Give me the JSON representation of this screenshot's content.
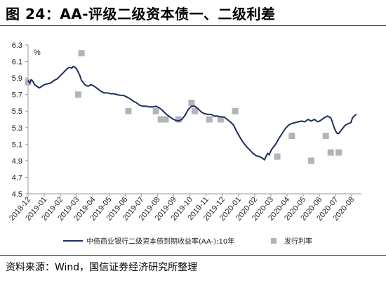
{
  "figure": {
    "title": "图 24：AA-评级二级资本债一、二级利差",
    "source": "资料来源：Wind，国信证券经济研究所整理"
  },
  "chart_data": {
    "type": "line",
    "unit_label": "%",
    "ylim": [
      4.5,
      6.3
    ],
    "yticks": [
      "6.3",
      "6.1",
      "5.9",
      "5.7",
      "5.5",
      "5.3",
      "5.1",
      "4.9",
      "4.7",
      "4.5"
    ],
    "x_ticks": [
      "2018-12",
      "2019-01",
      "2019-02",
      "2019-03",
      "2019-04",
      "2019-05",
      "2019-06",
      "2019-07",
      "2019-08",
      "2019-09",
      "2019-10",
      "2019-11",
      "2019-12",
      "2020-01",
      "2020-02",
      "2020-03",
      "2020-04",
      "2020-05",
      "2020-06",
      "2020-07",
      "2020-08"
    ],
    "x_range": [
      0,
      20.6
    ],
    "series": [
      {
        "name": "中债商业银行二级资本债到期收益率(AA-):10年",
        "kind": "line",
        "color": "#1c2f5c",
        "points": [
          [
            0.0,
            5.87
          ],
          [
            0.1,
            5.84
          ],
          [
            0.2,
            5.88
          ],
          [
            0.3,
            5.86
          ],
          [
            0.4,
            5.82
          ],
          [
            0.55,
            5.8
          ],
          [
            0.7,
            5.78
          ],
          [
            0.85,
            5.8
          ],
          [
            1.0,
            5.82
          ],
          [
            1.2,
            5.83
          ],
          [
            1.4,
            5.84
          ],
          [
            1.6,
            5.87
          ],
          [
            1.8,
            5.89
          ],
          [
            2.0,
            5.93
          ],
          [
            2.2,
            5.97
          ],
          [
            2.4,
            6.01
          ],
          [
            2.55,
            6.03
          ],
          [
            2.7,
            6.02
          ],
          [
            2.8,
            6.04
          ],
          [
            2.9,
            6.03
          ],
          [
            3.0,
            6.01
          ],
          [
            3.1,
            5.97
          ],
          [
            3.2,
            5.93
          ],
          [
            3.3,
            5.87
          ],
          [
            3.4,
            5.85
          ],
          [
            3.5,
            5.82
          ],
          [
            3.7,
            5.8
          ],
          [
            3.9,
            5.82
          ],
          [
            4.1,
            5.8
          ],
          [
            4.3,
            5.77
          ],
          [
            4.5,
            5.74
          ],
          [
            4.7,
            5.72
          ],
          [
            4.9,
            5.72
          ],
          [
            5.1,
            5.71
          ],
          [
            5.3,
            5.71
          ],
          [
            5.5,
            5.7
          ],
          [
            5.7,
            5.69
          ],
          [
            5.9,
            5.69
          ],
          [
            6.1,
            5.67
          ],
          [
            6.3,
            5.65
          ],
          [
            6.5,
            5.62
          ],
          [
            6.7,
            5.6
          ],
          [
            6.9,
            5.57
          ],
          [
            7.1,
            5.56
          ],
          [
            7.3,
            5.56
          ],
          [
            7.5,
            5.55
          ],
          [
            7.7,
            5.55
          ],
          [
            7.9,
            5.56
          ],
          [
            8.1,
            5.54
          ],
          [
            8.3,
            5.51
          ],
          [
            8.5,
            5.47
          ],
          [
            8.7,
            5.44
          ],
          [
            8.9,
            5.41
          ],
          [
            9.1,
            5.39
          ],
          [
            9.3,
            5.38
          ],
          [
            9.5,
            5.4
          ],
          [
            9.7,
            5.45
          ],
          [
            9.9,
            5.52
          ],
          [
            10.1,
            5.56
          ],
          [
            10.3,
            5.56
          ],
          [
            10.5,
            5.53
          ],
          [
            10.7,
            5.49
          ],
          [
            10.9,
            5.47
          ],
          [
            11.1,
            5.46
          ],
          [
            11.3,
            5.46
          ],
          [
            11.5,
            5.44
          ],
          [
            11.7,
            5.44
          ],
          [
            11.9,
            5.43
          ],
          [
            12.1,
            5.43
          ],
          [
            12.3,
            5.4
          ],
          [
            12.5,
            5.37
          ],
          [
            12.7,
            5.33
          ],
          [
            12.9,
            5.25
          ],
          [
            13.1,
            5.18
          ],
          [
            13.3,
            5.12
          ],
          [
            13.5,
            5.07
          ],
          [
            13.7,
            5.03
          ],
          [
            13.9,
            4.99
          ],
          [
            14.1,
            4.96
          ],
          [
            14.3,
            4.95
          ],
          [
            14.5,
            4.93
          ],
          [
            14.6,
            4.91
          ],
          [
            14.7,
            4.95
          ],
          [
            14.8,
            4.99
          ],
          [
            14.9,
            4.97
          ],
          [
            15.0,
            5.02
          ],
          [
            15.1,
            5.05
          ],
          [
            15.3,
            5.1
          ],
          [
            15.5,
            5.17
          ],
          [
            15.7,
            5.23
          ],
          [
            15.9,
            5.29
          ],
          [
            16.1,
            5.33
          ],
          [
            16.3,
            5.35
          ],
          [
            16.5,
            5.36
          ],
          [
            16.7,
            5.37
          ],
          [
            16.9,
            5.38
          ],
          [
            17.1,
            5.37
          ],
          [
            17.3,
            5.4
          ],
          [
            17.5,
            5.38
          ],
          [
            17.7,
            5.4
          ],
          [
            17.9,
            5.37
          ],
          [
            18.1,
            5.39
          ],
          [
            18.3,
            5.42
          ],
          [
            18.5,
            5.44
          ],
          [
            18.7,
            5.42
          ],
          [
            18.8,
            5.37
          ],
          [
            18.9,
            5.31
          ],
          [
            19.0,
            5.26
          ],
          [
            19.1,
            5.23
          ],
          [
            19.2,
            5.23
          ],
          [
            19.4,
            5.28
          ],
          [
            19.6,
            5.33
          ],
          [
            19.8,
            5.35
          ],
          [
            19.95,
            5.36
          ],
          [
            20.05,
            5.42
          ],
          [
            20.2,
            5.45
          ],
          [
            20.3,
            5.46
          ]
        ]
      },
      {
        "name": "发行利率",
        "kind": "scatter",
        "color": "#b4b4b8",
        "points": [
          [
            0.0,
            5.85
          ],
          [
            3.1,
            5.7
          ],
          [
            3.3,
            6.2
          ],
          [
            6.2,
            5.5
          ],
          [
            7.9,
            5.5
          ],
          [
            8.2,
            5.4
          ],
          [
            8.5,
            5.4
          ],
          [
            9.3,
            5.4
          ],
          [
            10.1,
            5.6
          ],
          [
            10.3,
            5.5
          ],
          [
            11.2,
            5.4
          ],
          [
            11.9,
            5.4
          ],
          [
            12.8,
            5.5
          ],
          [
            15.4,
            4.95
          ],
          [
            16.3,
            5.2
          ],
          [
            17.5,
            4.9
          ],
          [
            18.4,
            5.2
          ],
          [
            18.7,
            5.0
          ],
          [
            19.2,
            5.0
          ]
        ]
      }
    ],
    "legend_position": "bottom",
    "grid": false
  }
}
